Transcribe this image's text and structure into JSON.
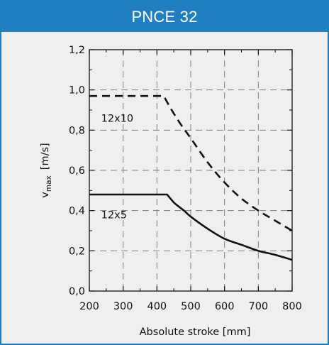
{
  "header": {
    "title": "PNCE 32"
  },
  "colors": {
    "accent": "#1f7fc1",
    "panel_bg": "#efefef",
    "grid": "#7f7f7f",
    "line": "#111111"
  },
  "chart_data": {
    "type": "line",
    "title": "",
    "xlabel": "Absolute stroke [mm]",
    "ylabel_main": "v",
    "ylabel_sub": "max",
    "ylabel_unit": "[m/s]",
    "xlim": [
      200,
      800
    ],
    "ylim": [
      0.0,
      1.2
    ],
    "x_ticks": [
      200,
      300,
      400,
      500,
      600,
      700,
      800
    ],
    "x_tick_labels": [
      "200",
      "300",
      "400",
      "500",
      "600",
      "700",
      "800"
    ],
    "y_ticks": [
      0.0,
      0.2,
      0.4,
      0.6,
      0.8,
      1.0,
      1.2
    ],
    "y_tick_labels": [
      "0,0",
      "0,2",
      "0,4",
      "0,6",
      "0,8",
      "1,0",
      "1,2"
    ],
    "grid": true,
    "series": [
      {
        "name": "12x10",
        "style": "dashed",
        "x": [
          200,
          300,
          420,
          440,
          470,
          500,
          550,
          600,
          650,
          700,
          750,
          800
        ],
        "y": [
          0.97,
          0.97,
          0.97,
          0.91,
          0.83,
          0.76,
          0.64,
          0.54,
          0.46,
          0.4,
          0.35,
          0.3
        ]
      },
      {
        "name": "12x5",
        "style": "solid",
        "x": [
          200,
          300,
          430,
          450,
          480,
          500,
          550,
          600,
          650,
          700,
          750,
          800
        ],
        "y": [
          0.48,
          0.48,
          0.48,
          0.44,
          0.4,
          0.37,
          0.31,
          0.26,
          0.23,
          0.2,
          0.18,
          0.155
        ]
      }
    ]
  }
}
